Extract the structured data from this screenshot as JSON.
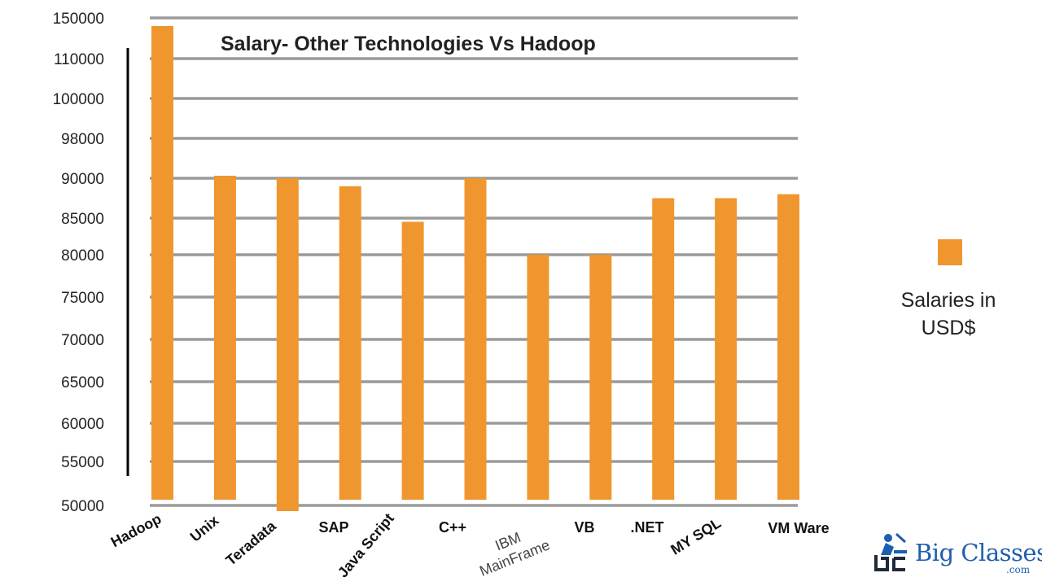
{
  "colors": {
    "bar": "#f0962f",
    "grid": "#9a9a9a",
    "axis": "#000000",
    "logo_blue": "#1c5fae",
    "logo_dark": "#1e2a3a"
  },
  "chart_data": {
    "type": "bar",
    "title": "Salary- Other Technologies Vs Hadoop",
    "xlabel": "",
    "ylabel": "",
    "y_ticks": [
      "150000",
      "110000",
      "100000",
      "98000",
      "90000",
      "85000",
      "80000",
      "75000",
      "70000",
      "65000",
      "60000",
      "55000",
      "50000"
    ],
    "y_scale": "non-linear (tick labels unevenly spaced)",
    "grid": true,
    "legend_position": "right",
    "categories": [
      "Hadoop",
      "Unix",
      "Teradata",
      "SAP",
      "Java Script",
      "C++",
      "IBM MainFrame",
      "VB",
      ".NET",
      "MY SQL",
      "VM Ware"
    ],
    "series": [
      {
        "name": "Salaries in USD$",
        "values": [
          150000,
          90500,
          90000,
          89000,
          84500,
          90000,
          80000,
          80000,
          87500,
          87500,
          88000
        ]
      }
    ]
  },
  "legend": {
    "label": "Salaries in USD$"
  },
  "logo": {
    "text": "Big Classes",
    "sub": ".com"
  }
}
